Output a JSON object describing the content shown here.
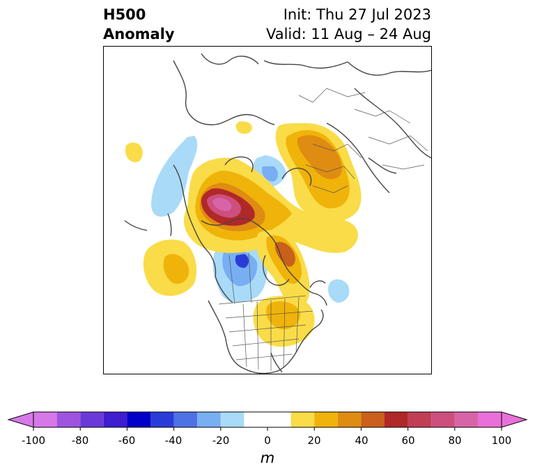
{
  "header": {
    "title_line1": "H500",
    "title_line2": "Anomaly",
    "init": "Init: Thu 27 Jul 2023",
    "valid": "Valid: 11 Aug – 24 Aug"
  },
  "colorbar": {
    "unit": "m",
    "tick_labels": [
      "-100",
      "-80",
      "-60",
      "-40",
      "-20",
      "0",
      "20",
      "40",
      "60",
      "80",
      "100"
    ],
    "boundaries": [
      -100,
      -90,
      -80,
      -70,
      -60,
      -50,
      -40,
      -30,
      -20,
      -10,
      10,
      20,
      30,
      40,
      50,
      60,
      70,
      80,
      90,
      100
    ],
    "colors": [
      "#d778e8",
      "#9f54e0",
      "#6a3ad8",
      "#3f1dd0",
      "#0000c8",
      "#2a3cd8",
      "#4e72e6",
      "#78aef2",
      "#a9daf8",
      "#ffffff",
      "#f9dc48",
      "#f0b30a",
      "#df8c12",
      "#c9601c",
      "#b02828",
      "#c23e55",
      "#cc4f7e",
      "#d864a8",
      "#e870d8"
    ],
    "under_color": "#d778e8",
    "over_color": "#e870d8",
    "range": [
      -100,
      100
    ]
  },
  "map": {
    "field": "H500 Anomaly",
    "palette_positive": [
      "#f9dc48",
      "#f0b30a",
      "#df8c12",
      "#c9601c",
      "#b02828",
      "#c23e55",
      "#cc4f7e",
      "#d864a8"
    ],
    "palette_negative": [
      "#a9daf8",
      "#78aef2",
      "#4e72e6",
      "#2a3cd8"
    ],
    "coastline_color": "#444444"
  }
}
